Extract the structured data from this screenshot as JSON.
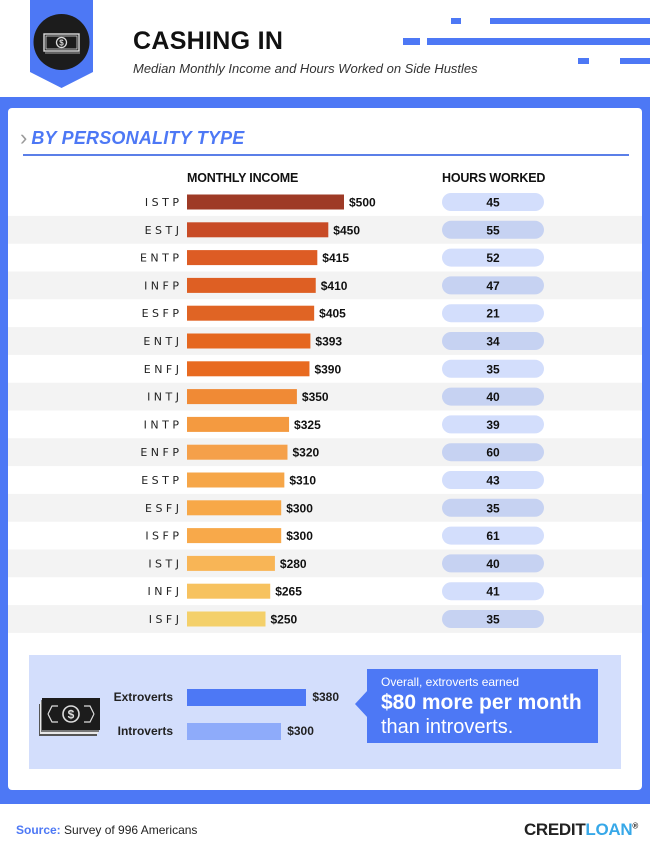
{
  "header": {
    "title": "CASHING IN",
    "subtitle": "Median Monthly Income and Hours Worked on Side Hustles",
    "icon": "money-bill-icon"
  },
  "section": {
    "title": "BY PERSONALITY TYPE",
    "icon": "chevron-right-icon"
  },
  "colors": {
    "brand_blue": "#4d78f5",
    "pill_light": "#d3defc",
    "pill_dark": "#c6d2f2",
    "row_stripe": "#f3f3f3"
  },
  "chart_data": {
    "type": "bar",
    "title": "BY PERSONALITY TYPE",
    "xlabel": "MONTHLY INCOME",
    "secondary_label": "HOURS WORKED",
    "categories": [
      "ISTP",
      "ESTJ",
      "ENTP",
      "INFP",
      "ESFP",
      "ENTJ",
      "ENFJ",
      "INTJ",
      "INTP",
      "ENFP",
      "ESTP",
      "ESFJ",
      "ISFP",
      "ISTJ",
      "INFJ",
      "ISFJ"
    ],
    "category_labels": [
      "I S T P",
      "E S T J",
      "E N T P",
      "I N F P",
      "E S F P",
      "E N T J",
      "E N F J",
      "I N T J",
      "I N T P",
      "E N F P",
      "E S T P",
      "E S F J",
      "I S F P",
      "I S T J",
      "I N F J",
      "I S F J"
    ],
    "series": [
      {
        "name": "Monthly Income",
        "values": [
          500,
          450,
          415,
          410,
          405,
          393,
          390,
          350,
          325,
          320,
          310,
          300,
          300,
          280,
          265,
          250
        ],
        "labels": [
          "$500",
          "$450",
          "$415",
          "$410",
          "$405",
          "$393",
          "$390",
          "$350",
          "$325",
          "$320",
          "$310",
          "$300",
          "$300",
          "$280",
          "$265",
          "$250"
        ]
      },
      {
        "name": "Hours Worked",
        "values": [
          45,
          55,
          52,
          47,
          21,
          34,
          35,
          40,
          39,
          60,
          43,
          35,
          61,
          40,
          41,
          35
        ]
      }
    ],
    "bar_colors": [
      "#9e3a26",
      "#c84b26",
      "#dd5c24",
      "#de5f23",
      "#e06424",
      "#e5671f",
      "#e86a20",
      "#f08a35",
      "#f49a40",
      "#f5a04a",
      "#f6a648",
      "#f7a848",
      "#f8a94a",
      "#f8b556",
      "#f7c25f",
      "#f4d06a"
    ],
    "xlim": [
      0,
      500
    ]
  },
  "summary": {
    "icon": "money-stack-icon",
    "items": [
      {
        "label": "Extroverts",
        "value": 380,
        "display": "$380",
        "color": "#4d78f5"
      },
      {
        "label": "Introverts",
        "value": 300,
        "display": "$300",
        "color": "#8eabfa"
      }
    ],
    "callout": {
      "line1": "Overall, extroverts earned",
      "line2": "$80 more per month",
      "line3": "than introverts."
    }
  },
  "footer": {
    "source_label": "Source:",
    "source_text": " Survey of 996 Americans",
    "logo_part1": "CREDIT",
    "logo_part2": "LOAN",
    "logo_mark": "®"
  }
}
